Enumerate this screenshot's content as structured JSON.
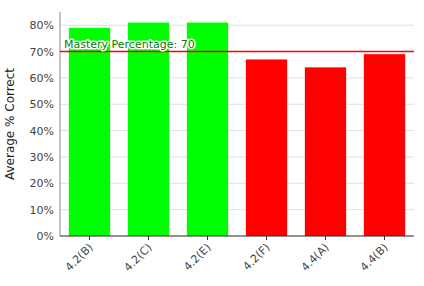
{
  "chart_data": {
    "type": "bar",
    "categories": [
      "4.2(B)",
      "4.2(C)",
      "4.2(E)",
      "4.2(F)",
      "4.4(A)",
      "4.4(B)"
    ],
    "values": [
      79,
      81,
      81,
      67,
      64,
      69
    ],
    "colors": [
      "#00ff00",
      "#00ff00",
      "#00ff00",
      "#ff0000",
      "#ff0000",
      "#ff0000"
    ],
    "y_label": "Average % Correct",
    "ylim": [
      0,
      85
    ],
    "yticks": [
      {
        "value": 0,
        "label": "0%"
      },
      {
        "value": 10,
        "label": "10%"
      },
      {
        "value": 20,
        "label": "20%"
      },
      {
        "value": 30,
        "label": "30%"
      },
      {
        "value": 40,
        "label": "40%"
      },
      {
        "value": 50,
        "label": "50%"
      },
      {
        "value": 60,
        "label": "60%"
      },
      {
        "value": 70,
        "label": "70%"
      },
      {
        "value": 80,
        "label": "80%"
      }
    ],
    "grid": true,
    "annotations": [
      {
        "type": "hline",
        "y": 70,
        "label": "Mastery Percentage: 70",
        "color": "#ff0000",
        "label_color": "#008000"
      }
    ]
  }
}
